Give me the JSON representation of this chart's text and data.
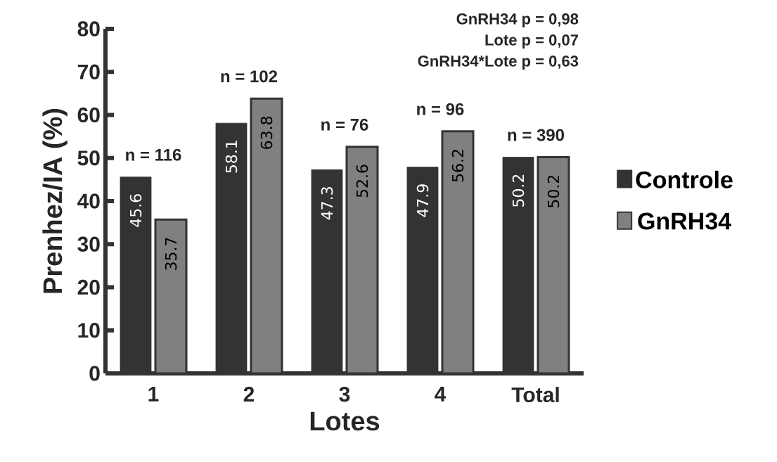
{
  "chart_data": {
    "type": "bar",
    "xlabel": "Lotes",
    "ylabel": "Prenhez/IA (%)",
    "categories": [
      "1",
      "2",
      "3",
      "4",
      "Total"
    ],
    "series": [
      {
        "name": "Controle",
        "color": "#333333",
        "values": [
          45.6,
          58.1,
          47.3,
          47.9,
          50.2
        ]
      },
      {
        "name": "GnRH34",
        "color": "#808080",
        "values": [
          35.7,
          63.8,
          52.6,
          56.2,
          50.2
        ]
      }
    ],
    "ylim": [
      0,
      80
    ],
    "yticks": [
      0,
      10,
      20,
      30,
      40,
      50,
      60,
      70,
      80
    ],
    "data_labels": true,
    "legend": "right",
    "grid": false,
    "annotations": [
      "n = 116",
      "n = 102",
      "n = 76",
      "n = 96",
      "n = 390",
      "GnRH34 p = 0,98",
      "Lote p = 0,07",
      "GnRH34*Lote p = 0,63"
    ]
  }
}
